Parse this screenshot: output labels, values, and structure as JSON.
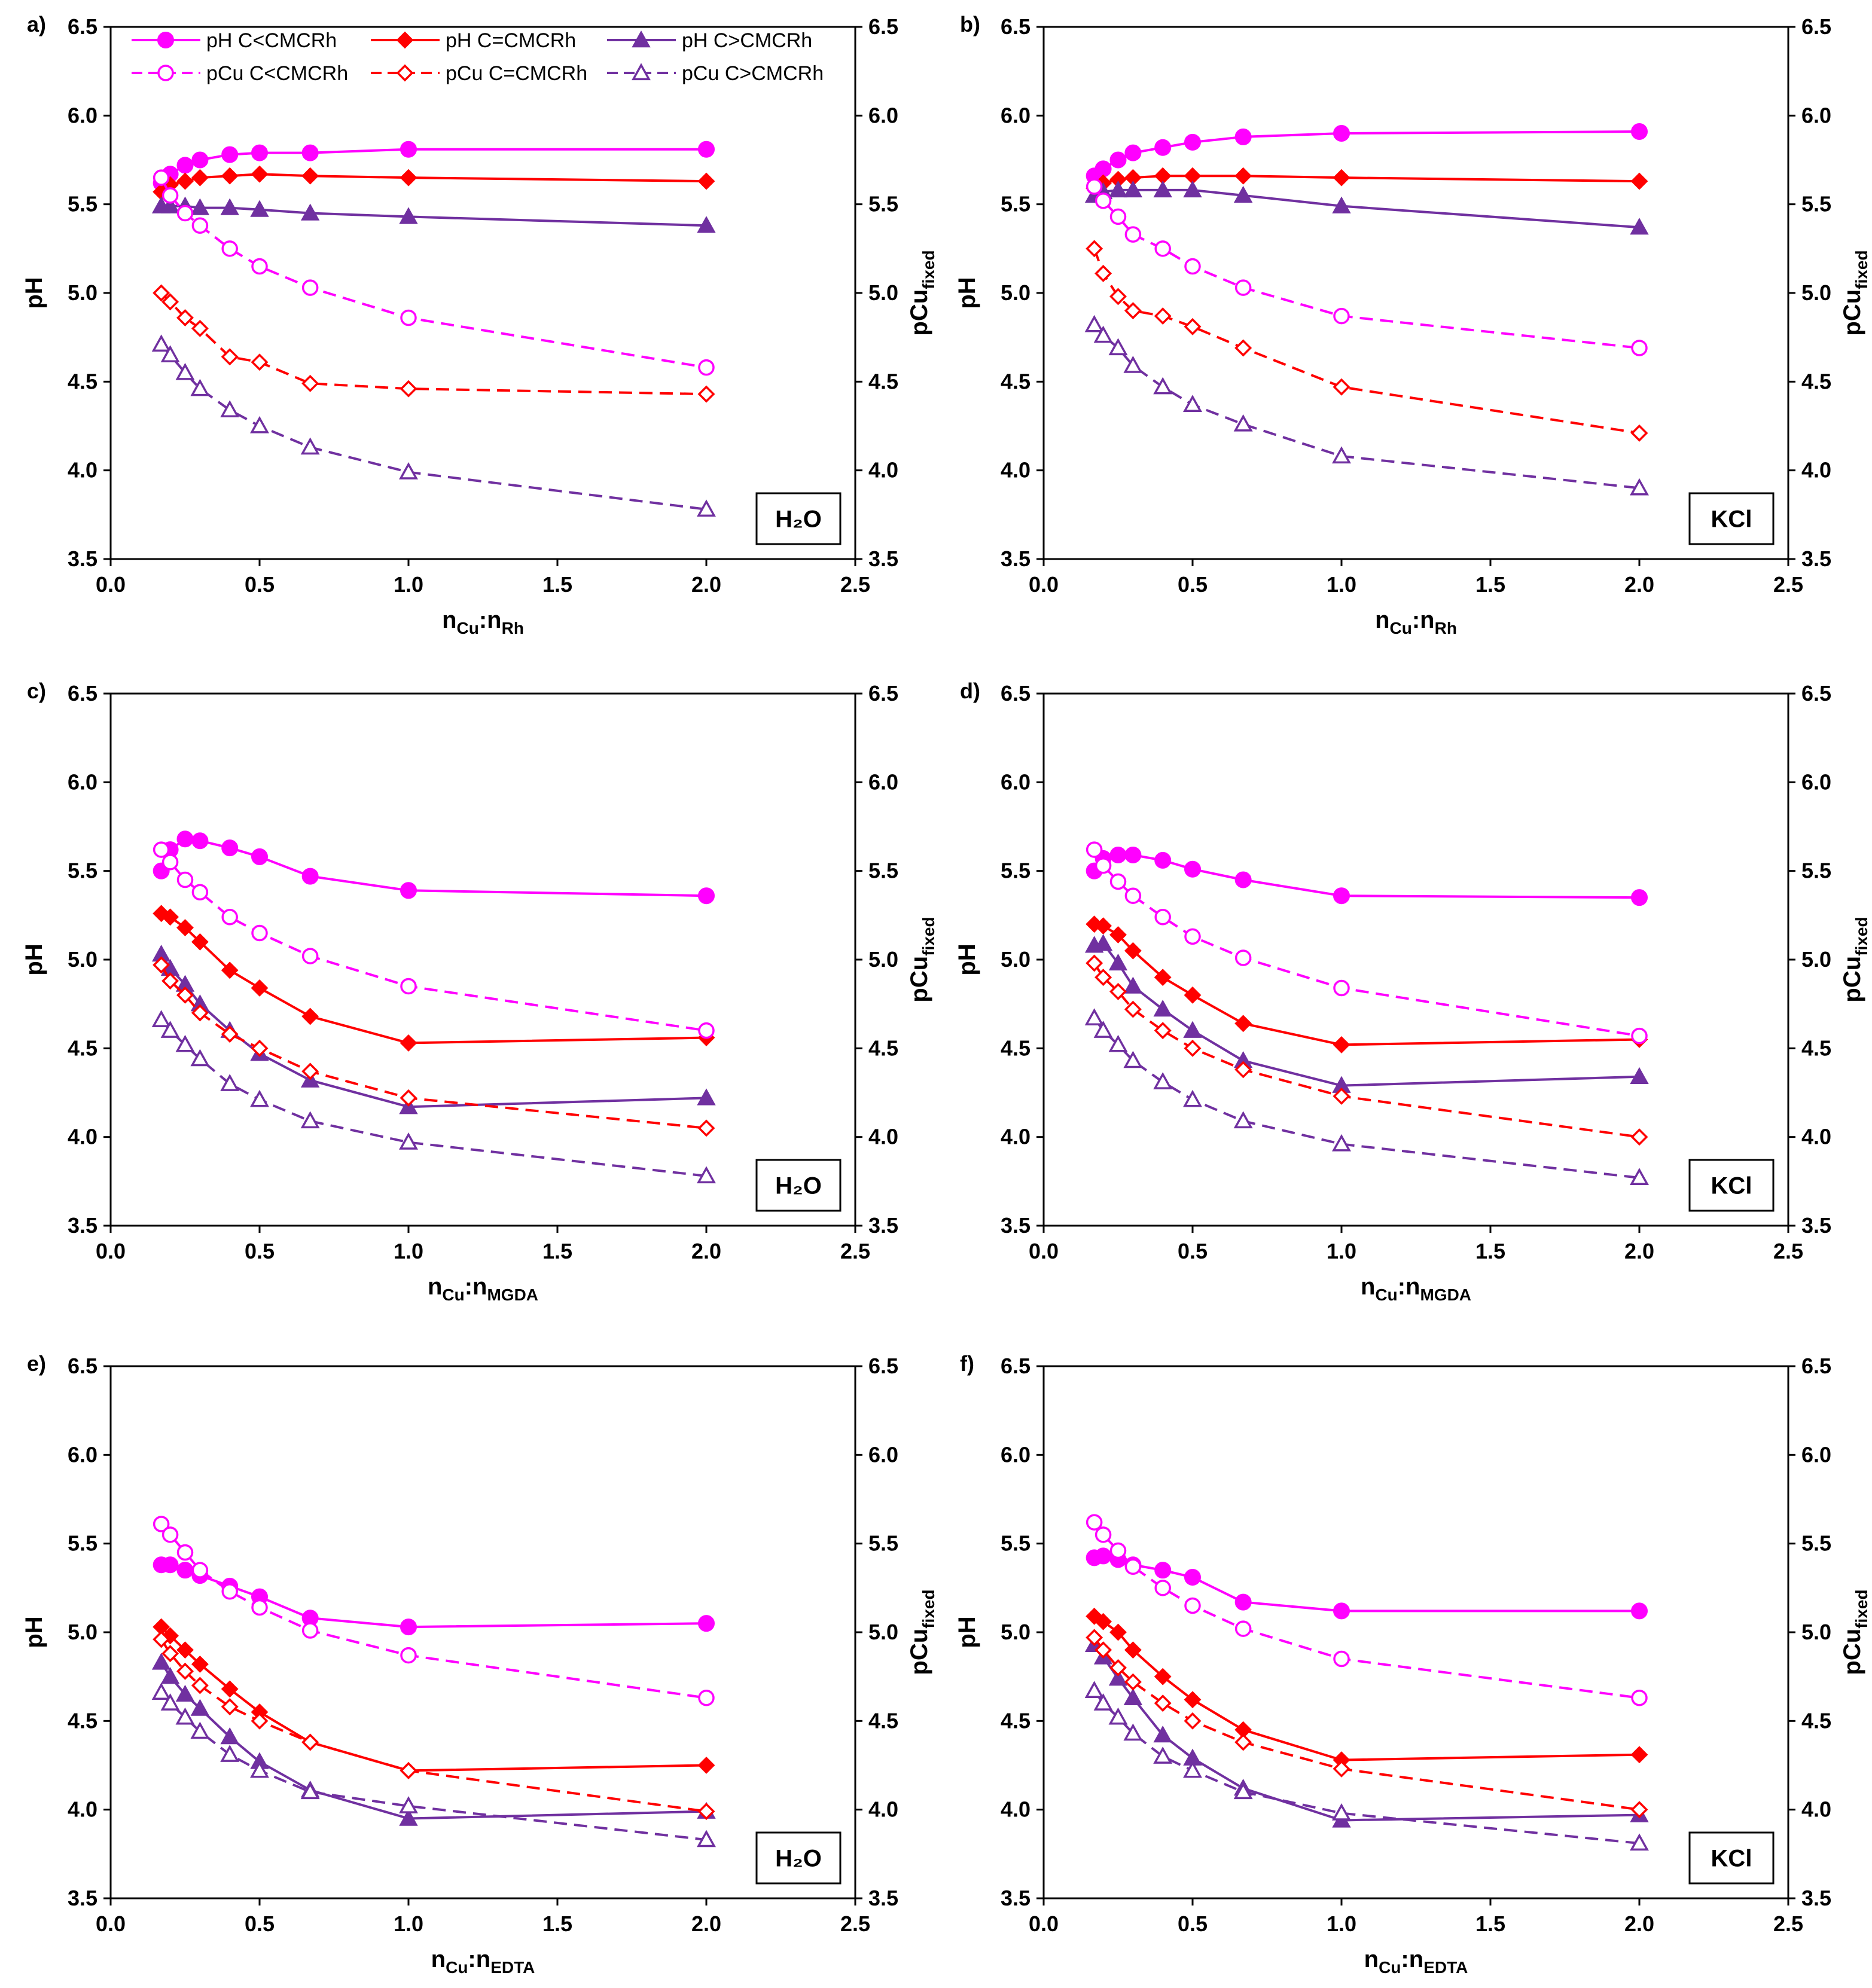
{
  "figure": {
    "legend": [
      {
        "label": "pH C<CMCRh",
        "color": "#ff00ff",
        "marker": "circle",
        "filled": true,
        "dashed": false
      },
      {
        "label": "pH C=CMCRh",
        "color": "#ff0000",
        "marker": "diamond",
        "filled": true,
        "dashed": false
      },
      {
        "label": "pH C>CMCRh",
        "color": "#7030a0",
        "marker": "triangle",
        "filled": true,
        "dashed": false
      },
      {
        "label": "pCu C<CMCRh",
        "color": "#ff00ff",
        "marker": "circle",
        "filled": false,
        "dashed": true
      },
      {
        "label": "pCu C=CMCRh",
        "color": "#ff0000",
        "marker": "diamond",
        "filled": false,
        "dashed": true
      },
      {
        "label": "pCu C>CMCRh",
        "color": "#7030a0",
        "marker": "triangle",
        "filled": false,
        "dashed": true
      }
    ]
  },
  "chart_data": [
    {
      "type": "line",
      "panel": "a)",
      "condition_label": "H₂O",
      "xlabel": "nCu:nRh",
      "xlabel_main": "n",
      "xlabel_sub1": "Cu",
      "xlabel_mid": ":n",
      "xlabel_sub2": "Rh",
      "ylabel_left": "pH",
      "ylabel_right": "pCufixed",
      "ylabel_right_main": "pCu",
      "ylabel_right_sub": "fixed",
      "xlim": [
        0,
        2.5
      ],
      "ylim": [
        3.5,
        6.5
      ],
      "x_ticks": [
        "0.0",
        "0.5",
        "1.0",
        "1.5",
        "2.0",
        "2.5"
      ],
      "y_ticks": [
        "3.5",
        "4.0",
        "4.5",
        "5.0",
        "5.5",
        "6.0",
        "6.5"
      ],
      "x": [
        0.17,
        0.2,
        0.25,
        0.3,
        0.4,
        0.5,
        0.67,
        1.0,
        2.0
      ],
      "series": [
        {
          "name": "pH C<CMCRh",
          "values": [
            5.62,
            5.67,
            5.72,
            5.75,
            5.78,
            5.79,
            5.79,
            5.81,
            5.81
          ]
        },
        {
          "name": "pH C=CMCRh",
          "values": [
            5.57,
            5.61,
            5.63,
            5.65,
            5.66,
            5.67,
            5.66,
            5.65,
            5.63
          ]
        },
        {
          "name": "pH C>CMCRh",
          "values": [
            5.49,
            5.49,
            5.49,
            5.48,
            5.48,
            5.47,
            5.45,
            5.43,
            5.38
          ]
        },
        {
          "name": "pCu C<CMCRh",
          "values": [
            5.65,
            5.55,
            5.45,
            5.38,
            5.25,
            5.15,
            5.03,
            4.86,
            4.58
          ]
        },
        {
          "name": "pCu C=CMCRh",
          "values": [
            5.0,
            4.95,
            4.86,
            4.8,
            4.64,
            4.61,
            4.49,
            4.46,
            4.43
          ]
        },
        {
          "name": "pCu C>CMCRh",
          "values": [
            4.71,
            4.65,
            4.55,
            4.46,
            4.34,
            4.25,
            4.13,
            3.99,
            3.78
          ]
        }
      ]
    },
    {
      "type": "line",
      "panel": "b)",
      "condition_label": "KCl",
      "xlabel": "nCu:nRh",
      "xlabel_main": "n",
      "xlabel_sub1": "Cu",
      "xlabel_mid": ":n",
      "xlabel_sub2": "Rh",
      "ylabel_left": "pH",
      "ylabel_right": "pCufixed",
      "ylabel_right_main": "pCu",
      "ylabel_right_sub": "fixed",
      "xlim": [
        0,
        2.5
      ],
      "ylim": [
        3.5,
        6.5
      ],
      "x_ticks": [
        "0.0",
        "0.5",
        "1.0",
        "1.5",
        "2.0",
        "2.5"
      ],
      "y_ticks": [
        "3.5",
        "4.0",
        "4.5",
        "5.0",
        "5.5",
        "6.0",
        "6.5"
      ],
      "x": [
        0.17,
        0.2,
        0.25,
        0.3,
        0.4,
        0.5,
        0.67,
        1.0,
        2.0
      ],
      "series": [
        {
          "name": "pH C<CMCRh",
          "values": [
            5.66,
            5.7,
            5.75,
            5.79,
            5.82,
            5.85,
            5.88,
            5.9,
            5.91
          ]
        },
        {
          "name": "pH C=CMCRh",
          "values": [
            5.59,
            5.62,
            5.64,
            5.65,
            5.66,
            5.66,
            5.66,
            5.65,
            5.63
          ]
        },
        {
          "name": "pH C>CMCRh",
          "values": [
            5.55,
            5.57,
            5.58,
            5.58,
            5.58,
            5.58,
            5.55,
            5.49,
            5.37
          ]
        },
        {
          "name": "pCu C<CMCRh",
          "values": [
            5.6,
            5.52,
            5.43,
            5.33,
            5.25,
            5.15,
            5.03,
            4.87,
            4.69
          ]
        },
        {
          "name": "pCu C=CMCRh",
          "values": [
            5.25,
            5.11,
            4.98,
            4.9,
            4.87,
            4.81,
            4.69,
            4.47,
            4.21
          ]
        },
        {
          "name": "pCu C>CMCRh",
          "values": [
            4.82,
            4.76,
            4.69,
            4.59,
            4.47,
            4.37,
            4.26,
            4.08,
            3.9
          ]
        }
      ]
    },
    {
      "type": "line",
      "panel": "c)",
      "condition_label": "H₂O",
      "xlabel": "nCu:nMGDA",
      "xlabel_main": "n",
      "xlabel_sub1": "Cu",
      "xlabel_mid": ":n",
      "xlabel_sub2": "MGDA",
      "ylabel_left": "pH",
      "ylabel_right": "pCufixed",
      "ylabel_right_main": "pCu",
      "ylabel_right_sub": "fixed",
      "xlim": [
        0,
        2.5
      ],
      "ylim": [
        3.5,
        6.5
      ],
      "x_ticks": [
        "0.0",
        "0.5",
        "1.0",
        "1.5",
        "2.0",
        "2.5"
      ],
      "y_ticks": [
        "3.5",
        "4.0",
        "4.5",
        "5.0",
        "5.5",
        "6.0",
        "6.5"
      ],
      "x": [
        0.17,
        0.2,
        0.25,
        0.3,
        0.4,
        0.5,
        0.67,
        1.0,
        2.0
      ],
      "series": [
        {
          "name": "pH C<CMCRh",
          "values": [
            5.5,
            5.62,
            5.68,
            5.67,
            5.63,
            5.58,
            5.47,
            5.39,
            5.36
          ]
        },
        {
          "name": "pH C=CMCRh",
          "values": [
            5.26,
            5.24,
            5.18,
            5.1,
            4.94,
            4.84,
            4.68,
            4.53,
            4.56
          ]
        },
        {
          "name": "pH C>CMCRh",
          "values": [
            5.03,
            4.95,
            4.86,
            4.75,
            4.6,
            4.47,
            4.32,
            4.17,
            4.22
          ]
        },
        {
          "name": "pCu C<CMCRh",
          "values": [
            5.62,
            5.55,
            5.45,
            5.38,
            5.24,
            5.15,
            5.02,
            4.85,
            4.6
          ]
        },
        {
          "name": "pCu C=CMCRh",
          "values": [
            4.97,
            4.88,
            4.8,
            4.7,
            4.58,
            4.5,
            4.37,
            4.22,
            4.05
          ]
        },
        {
          "name": "pCu C>CMCRh",
          "values": [
            4.66,
            4.6,
            4.52,
            4.44,
            4.3,
            4.21,
            4.09,
            3.97,
            3.78
          ]
        }
      ]
    },
    {
      "type": "line",
      "panel": "d)",
      "condition_label": "KCl",
      "xlabel": "nCu:nMGDA",
      "xlabel_main": "n",
      "xlabel_sub1": "Cu",
      "xlabel_mid": ":n",
      "xlabel_sub2": "MGDA",
      "ylabel_left": "pH",
      "ylabel_right": "pCufixed",
      "ylabel_right_main": "pCu",
      "ylabel_right_sub": "fixed",
      "xlim": [
        0,
        2.5
      ],
      "ylim": [
        3.5,
        6.5
      ],
      "x_ticks": [
        "0.0",
        "0.5",
        "1.0",
        "1.5",
        "2.0",
        "2.5"
      ],
      "y_ticks": [
        "3.5",
        "4.0",
        "4.5",
        "5.0",
        "5.5",
        "6.0",
        "6.5"
      ],
      "x": [
        0.17,
        0.2,
        0.25,
        0.3,
        0.4,
        0.5,
        0.67,
        1.0,
        2.0
      ],
      "series": [
        {
          "name": "pH C<CMCRh",
          "values": [
            5.5,
            5.57,
            5.59,
            5.59,
            5.56,
            5.51,
            5.45,
            5.36,
            5.35
          ]
        },
        {
          "name": "pH C=CMCRh",
          "values": [
            5.2,
            5.19,
            5.14,
            5.05,
            4.9,
            4.8,
            4.64,
            4.52,
            4.55
          ]
        },
        {
          "name": "pH C>CMCRh",
          "values": [
            5.08,
            5.09,
            4.98,
            4.85,
            4.72,
            4.6,
            4.43,
            4.29,
            4.34
          ]
        },
        {
          "name": "pCu C<CMCRh",
          "values": [
            5.62,
            5.53,
            5.44,
            5.36,
            5.24,
            5.13,
            5.01,
            4.84,
            4.57
          ]
        },
        {
          "name": "pCu C=CMCRh",
          "values": [
            4.98,
            4.9,
            4.82,
            4.72,
            4.6,
            4.5,
            4.38,
            4.23,
            4.0
          ]
        },
        {
          "name": "pCu C>CMCRh",
          "values": [
            4.67,
            4.6,
            4.52,
            4.43,
            4.31,
            4.21,
            4.09,
            3.96,
            3.77
          ]
        }
      ]
    },
    {
      "type": "line",
      "panel": "e)",
      "condition_label": "H₂O",
      "xlabel": "nCu:nEDTA",
      "xlabel_main": "n",
      "xlabel_sub1": "Cu",
      "xlabel_mid": ":n",
      "xlabel_sub2": "EDTA",
      "ylabel_left": "pH",
      "ylabel_right": "pCufixed",
      "ylabel_right_main": "pCu",
      "ylabel_right_sub": "fixed",
      "xlim": [
        0,
        2.5
      ],
      "ylim": [
        3.5,
        6.5
      ],
      "x_ticks": [
        "0.0",
        "0.5",
        "1.0",
        "1.5",
        "2.0",
        "2.5"
      ],
      "y_ticks": [
        "3.5",
        "4.0",
        "4.5",
        "5.0",
        "5.5",
        "6.0",
        "6.5"
      ],
      "x": [
        0.17,
        0.2,
        0.25,
        0.3,
        0.4,
        0.5,
        0.67,
        1.0,
        2.0
      ],
      "series": [
        {
          "name": "pH C<CMCRh",
          "values": [
            5.38,
            5.38,
            5.35,
            5.32,
            5.26,
            5.2,
            5.08,
            5.03,
            5.05
          ]
        },
        {
          "name": "pH C=CMCRh",
          "values": [
            5.03,
            4.98,
            4.9,
            4.82,
            4.68,
            4.55,
            4.38,
            4.22,
            4.25
          ]
        },
        {
          "name": "pH C>CMCRh",
          "values": [
            4.83,
            4.75,
            4.65,
            4.57,
            4.41,
            4.27,
            4.11,
            3.95,
            3.99
          ]
        },
        {
          "name": "pCu C<CMCRh",
          "values": [
            5.61,
            5.55,
            5.45,
            5.35,
            5.23,
            5.14,
            5.01,
            4.87,
            4.63
          ]
        },
        {
          "name": "pCu C=CMCRh",
          "values": [
            4.96,
            4.88,
            4.78,
            4.7,
            4.58,
            4.5,
            4.38,
            4.22,
            3.99
          ]
        },
        {
          "name": "pCu C>CMCRh",
          "values": [
            4.66,
            4.6,
            4.52,
            4.44,
            4.31,
            4.22,
            4.1,
            4.02,
            3.83
          ]
        }
      ]
    },
    {
      "type": "line",
      "panel": "f)",
      "condition_label": "KCl",
      "xlabel": "nCu:nEDTA",
      "xlabel_main": "n",
      "xlabel_sub1": "Cu",
      "xlabel_mid": ":n",
      "xlabel_sub2": "EDTA",
      "ylabel_left": "pH",
      "ylabel_right": "pCufixed",
      "ylabel_right_main": "pCu",
      "ylabel_right_sub": "fixed",
      "xlim": [
        0,
        2.5
      ],
      "ylim": [
        3.5,
        6.5
      ],
      "x_ticks": [
        "0.0",
        "0.5",
        "1.0",
        "1.5",
        "2.0",
        "2.5"
      ],
      "y_ticks": [
        "3.5",
        "4.0",
        "4.5",
        "5.0",
        "5.5",
        "6.0",
        "6.5"
      ],
      "x": [
        0.17,
        0.2,
        0.25,
        0.3,
        0.4,
        0.5,
        0.67,
        1.0,
        2.0
      ],
      "series": [
        {
          "name": "pH C<CMCRh",
          "values": [
            5.42,
            5.43,
            5.41,
            5.38,
            5.35,
            5.31,
            5.17,
            5.12,
            5.12
          ]
        },
        {
          "name": "pH C=CMCRh",
          "values": [
            5.09,
            5.06,
            5.0,
            4.9,
            4.75,
            4.62,
            4.45,
            4.28,
            4.31
          ]
        },
        {
          "name": "pH C>CMCRh",
          "values": [
            4.93,
            4.86,
            4.74,
            4.63,
            4.42,
            4.29,
            4.12,
            3.94,
            3.97
          ]
        },
        {
          "name": "pCu C<CMCRh",
          "values": [
            5.62,
            5.55,
            5.46,
            5.37,
            5.25,
            5.15,
            5.02,
            4.85,
            4.63
          ]
        },
        {
          "name": "pCu C=CMCRh",
          "values": [
            4.97,
            4.9,
            4.8,
            4.72,
            4.6,
            4.5,
            4.38,
            4.23,
            4.0
          ]
        },
        {
          "name": "pCu C>CMCRh",
          "values": [
            4.67,
            4.6,
            4.52,
            4.43,
            4.3,
            4.22,
            4.1,
            3.98,
            3.81
          ]
        }
      ]
    }
  ]
}
